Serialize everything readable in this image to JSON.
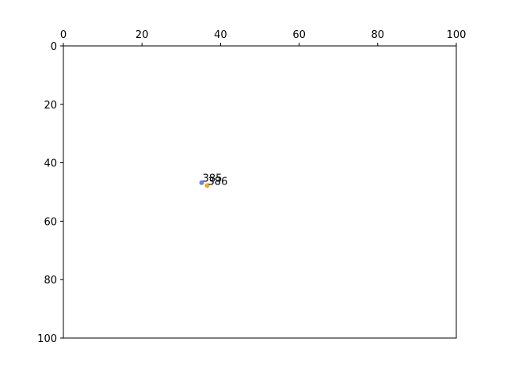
{
  "chart_data": {
    "type": "scatter",
    "xlim": [
      0,
      100
    ],
    "ylim": [
      0,
      100
    ],
    "y_inverted": true,
    "x_axis_position": "top",
    "grid": false,
    "x_ticks": [
      0,
      20,
      40,
      60,
      80,
      100
    ],
    "y_ticks": [
      0,
      20,
      40,
      60,
      80,
      100
    ],
    "points": [
      {
        "x": 35.2,
        "y": 46.8,
        "label": "385",
        "color": "#6f7ff0"
      },
      {
        "x": 36.6,
        "y": 47.8,
        "label": "386",
        "color": "#f5a623"
      }
    ]
  }
}
